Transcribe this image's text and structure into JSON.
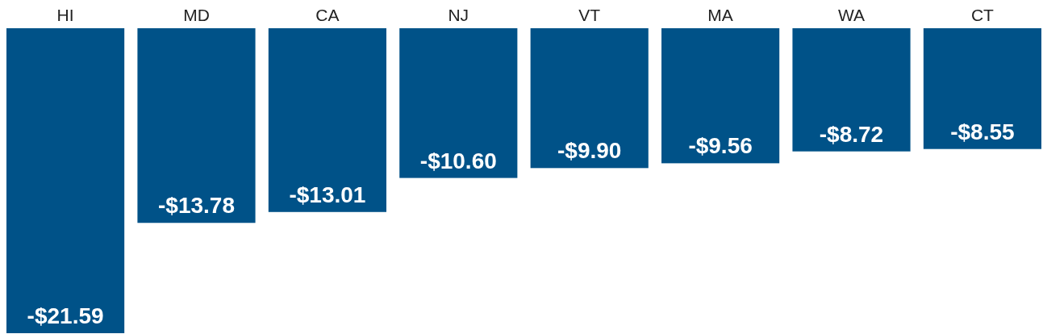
{
  "chart_data": {
    "type": "bar",
    "categories": [
      "HI",
      "MD",
      "CA",
      "NJ",
      "VT",
      "MA",
      "WA",
      "CT"
    ],
    "values": [
      -21.59,
      -13.78,
      -13.01,
      -10.6,
      -9.9,
      -9.56,
      -8.72,
      -8.55
    ],
    "value_labels": [
      "-$21.59",
      "-$13.78",
      "-$13.01",
      "-$10.60",
      "-$9.90",
      "-$9.56",
      "-$8.72",
      "-$8.55"
    ],
    "color": "#005288"
  }
}
